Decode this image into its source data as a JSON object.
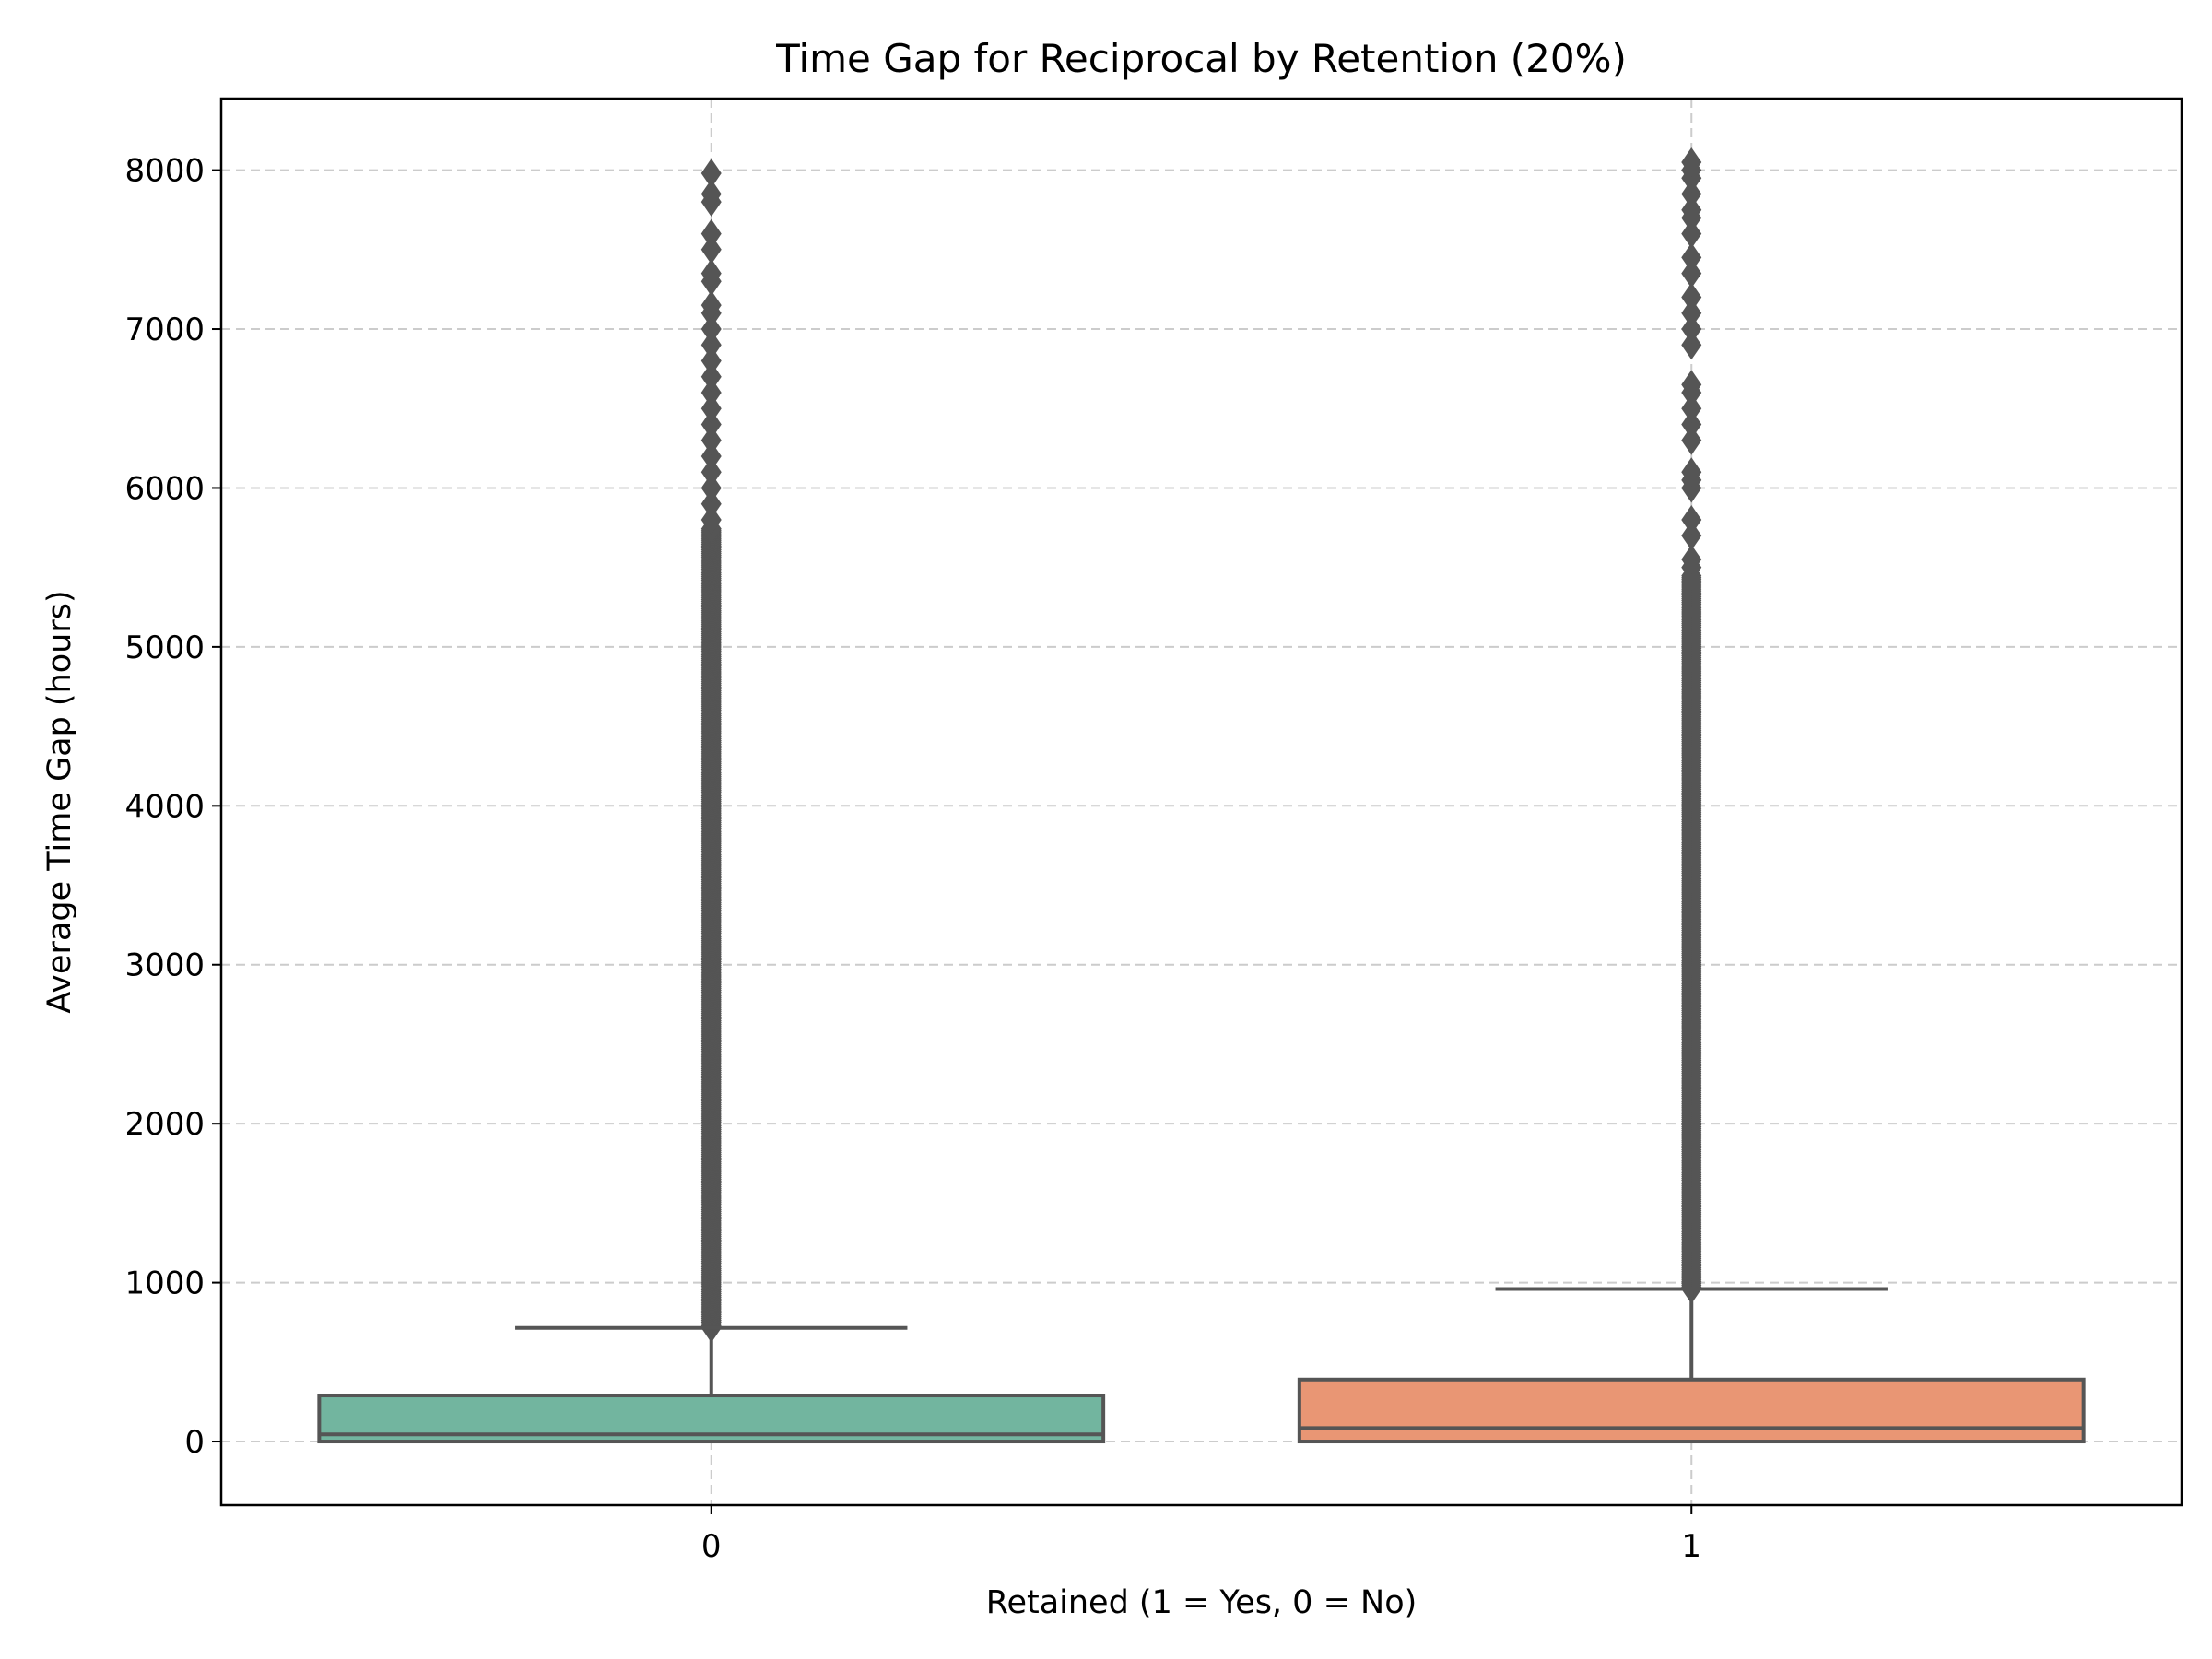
{
  "chart_data": {
    "type": "box",
    "title": "Time Gap for Reciprocal by Retention (20%)",
    "xlabel": "Retained (1 = Yes, 0 = No)",
    "ylabel": "Average Time Gap (hours)",
    "categories": [
      "0",
      "1"
    ],
    "ylim": [
      -400,
      8450
    ],
    "yticks": [
      0,
      1000,
      2000,
      3000,
      4000,
      5000,
      6000,
      7000,
      8000
    ],
    "grid": true,
    "boxes": [
      {
        "category": "0",
        "min": 0,
        "q1": 0,
        "median": 45,
        "q3": 290,
        "whisker_high": 715,
        "color": "#72b59f",
        "outliers": {
          "dense_from": 715,
          "dense_to": 5750,
          "sparse": [
            5800,
            5900,
            6000,
            6100,
            6200,
            6300,
            6400,
            6500,
            6600,
            6700,
            6800,
            6900,
            7000,
            7100,
            7150,
            7300,
            7350,
            7500,
            7600,
            7800,
            7850,
            7980
          ]
        }
      },
      {
        "category": "1",
        "min": 0,
        "q1": 0,
        "median": 85,
        "q3": 390,
        "whisker_high": 960,
        "color": "#e99674",
        "outliers": {
          "dense_from": 960,
          "dense_to": 5450,
          "sparse": [
            5500,
            5550,
            5700,
            5800,
            6000,
            6050,
            6100,
            6300,
            6400,
            6500,
            6600,
            6650,
            6900,
            7000,
            7100,
            7200,
            7350,
            7450,
            7600,
            7700,
            7750,
            7850,
            7950,
            8000,
            8050
          ]
        }
      }
    ]
  }
}
